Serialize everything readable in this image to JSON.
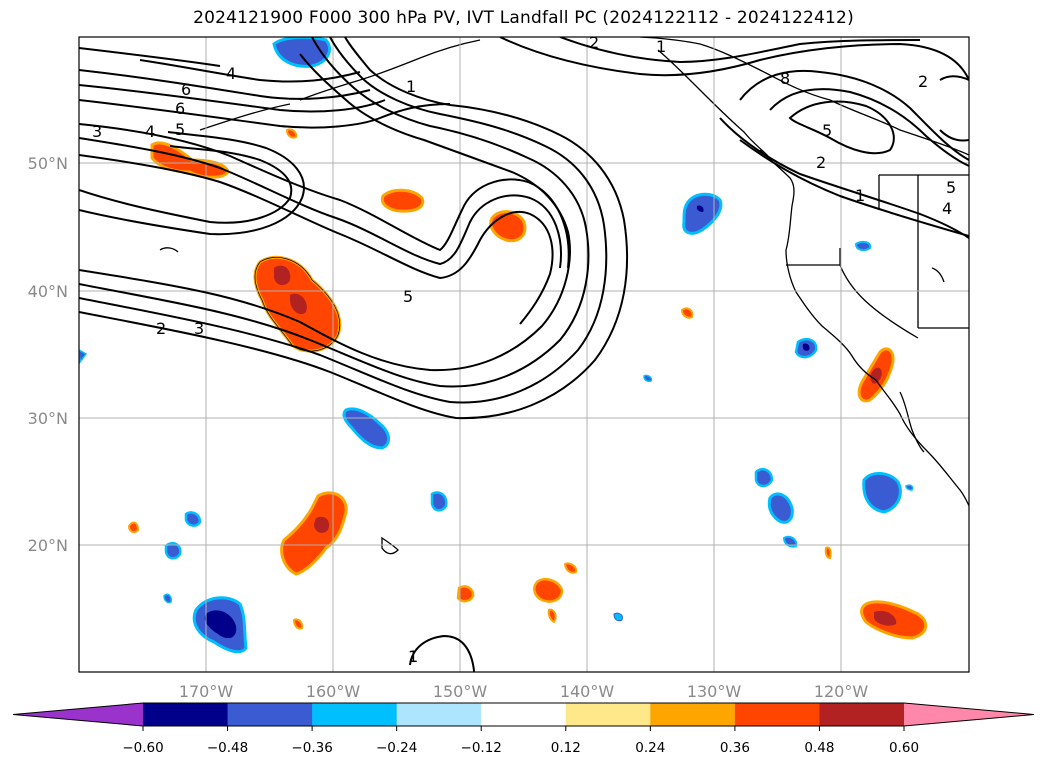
{
  "title": "2024121900 F000 300 hPa PV, IVT Landfall PC (2024122112 - 2024122412)",
  "longitude_labels": [
    "170°W",
    "160°W",
    "150°W",
    "140°W",
    "130°W",
    "120°W"
  ],
  "latitude_labels": [
    "50°N",
    "40°N",
    "30°N",
    "20°N"
  ],
  "contour_labels": [
    "4",
    "6",
    "6",
    "3",
    "4",
    "5",
    "5",
    "2",
    "3",
    "1",
    "2",
    "1",
    "2",
    "8",
    "5",
    "2",
    "1",
    "5",
    "4",
    "1"
  ],
  "colorbar": {
    "ticks": [
      "−0.60",
      "−0.48",
      "−0.36",
      "−0.24",
      "−0.12",
      "0.12",
      "0.24",
      "0.36",
      "0.48",
      "0.60"
    ],
    "colors": {
      "under": "#9933cc",
      "bins": [
        "#00008b",
        "#3a5bd1",
        "#00bfff",
        "#ade4ff",
        "#ffffff",
        "#ffe88a",
        "#ffa500",
        "#ff4500",
        "#b22222"
      ],
      "over": "#ff88aa"
    }
  }
}
